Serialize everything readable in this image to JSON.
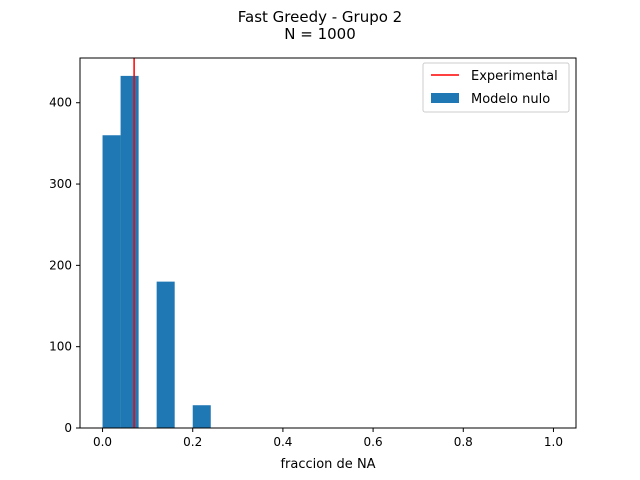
{
  "chart_data": {
    "type": "bar",
    "title": "Fast Greedy - Grupo 2",
    "subtitle": "N = 1000",
    "xlabel": "fraccion de NA",
    "ylabel": "",
    "xlim": [
      -0.05,
      1.05
    ],
    "ylim": [
      0,
      455
    ],
    "xticks": [
      0.0,
      0.2,
      0.4,
      0.6,
      0.8,
      1.0
    ],
    "xtick_labels": [
      "0.0",
      "0.2",
      "0.4",
      "0.6",
      "0.8",
      "1.0"
    ],
    "yticks": [
      0,
      100,
      200,
      300,
      400
    ],
    "ytick_labels": [
      "0",
      "100",
      "200",
      "300",
      "400"
    ],
    "grid": false,
    "legend_position": "top-right",
    "bar_width": 0.04,
    "bars": [
      {
        "x": 0.0,
        "value": 360
      },
      {
        "x": 0.04,
        "value": 433
      },
      {
        "x": 0.12,
        "value": 180
      },
      {
        "x": 0.2,
        "value": 28
      }
    ],
    "bar_color": "#1f77b4",
    "vline": {
      "x": 0.07,
      "color": "#ff0000"
    },
    "legend": [
      {
        "label": "Experimental",
        "kind": "line",
        "color": "#ff0000"
      },
      {
        "label": "Modelo nulo",
        "kind": "patch",
        "color": "#1f77b4"
      }
    ]
  }
}
